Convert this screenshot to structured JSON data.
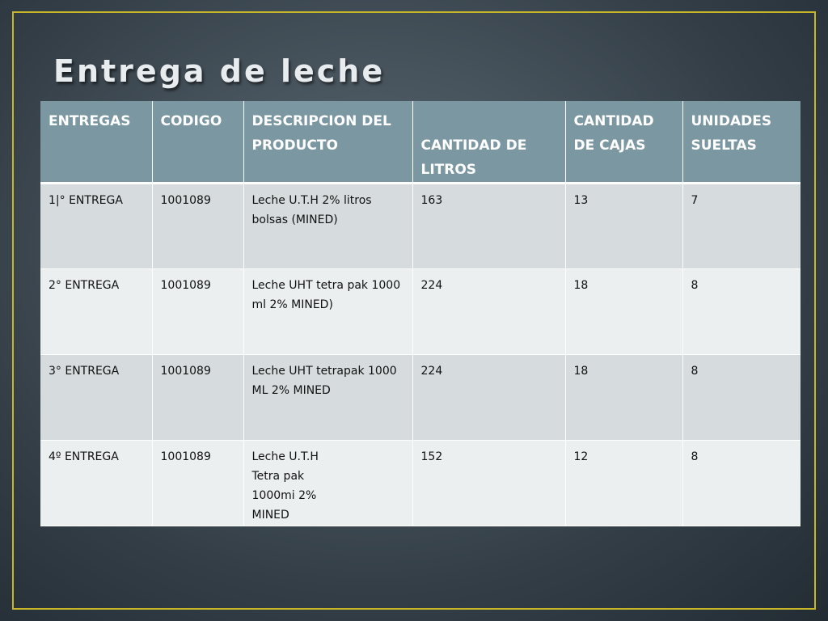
{
  "title": "Entrega de leche",
  "colors": {
    "header_bg": "#7b97a2",
    "row_dark": "#d6dcde",
    "row_light": "#eceff0",
    "frame_border": "#c8b62a"
  },
  "table": {
    "headers": [
      "ENTREGAS",
      "CODIGO",
      "DESCRIPCION DEL PRODUCTO",
      "CANTIDAD DE LITROS",
      "CANTIDAD DE CAJAS",
      "UNIDADES SUELTAS"
    ],
    "rows": [
      [
        "1|° ENTREGA",
        "1001089",
        "Leche U.T.H 2% litros bolsas (MINED)",
        "163",
        "13",
        "7"
      ],
      [
        "2° ENTREGA",
        "1001089",
        "Leche UHT tetra pak 1000 ml 2% MINED)",
        "224",
        "18",
        "8"
      ],
      [
        "3° ENTREGA",
        "1001089",
        "Leche UHT  tetrapak 1000 ML 2%  MINED",
        "224",
        "18",
        "8"
      ],
      [
        "4º ENTREGA",
        "1001089",
        "Leche U.T.H\nTetra pak\n1000mi 2%\nMINED",
        "152",
        "12",
        "8"
      ]
    ]
  }
}
